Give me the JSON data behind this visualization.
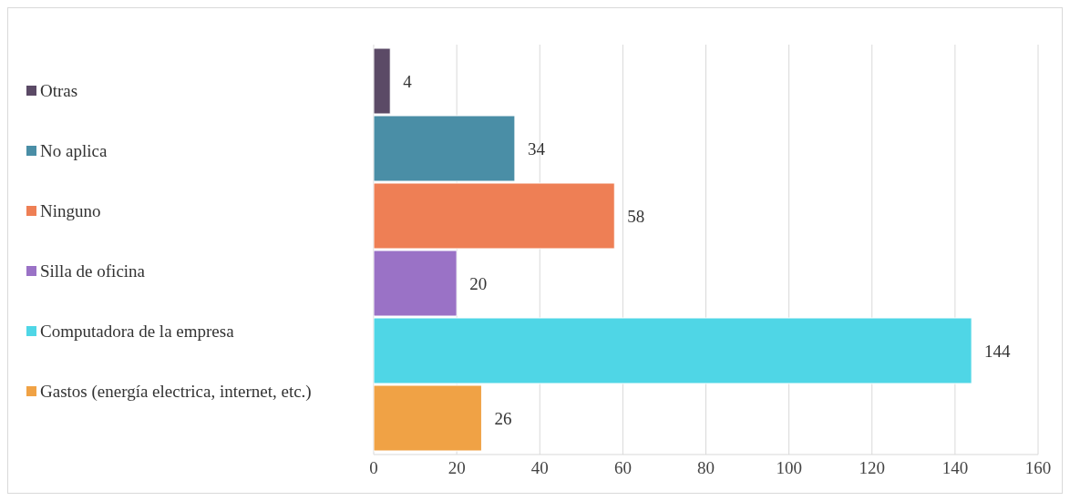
{
  "chart_data": {
    "type": "bar",
    "orientation": "horizontal",
    "categories": [
      null
    ],
    "series": [
      {
        "name": "Otras",
        "color": "#5b4a66",
        "values": [
          4
        ]
      },
      {
        "name": "No aplica",
        "color": "#4a8ea6",
        "values": [
          34
        ]
      },
      {
        "name": "Ninguno",
        "color": "#ee7f55",
        "values": [
          58
        ]
      },
      {
        "name": "Silla de oficina",
        "color": "#9a72c6",
        "values": [
          20
        ]
      },
      {
        "name": "Computadora de la empresa",
        "color": "#4fd6e6",
        "values": [
          144
        ]
      },
      {
        "name": "Gastos (energía electrica, internet, etc.)",
        "color": "#f0a245",
        "values": [
          26
        ]
      }
    ],
    "xlim": [
      0,
      160
    ],
    "xticks": [
      0,
      20,
      40,
      60,
      80,
      100,
      120,
      140,
      160
    ],
    "grid": "x",
    "legend": "left",
    "data_labels": true,
    "tick_labels": "x"
  }
}
